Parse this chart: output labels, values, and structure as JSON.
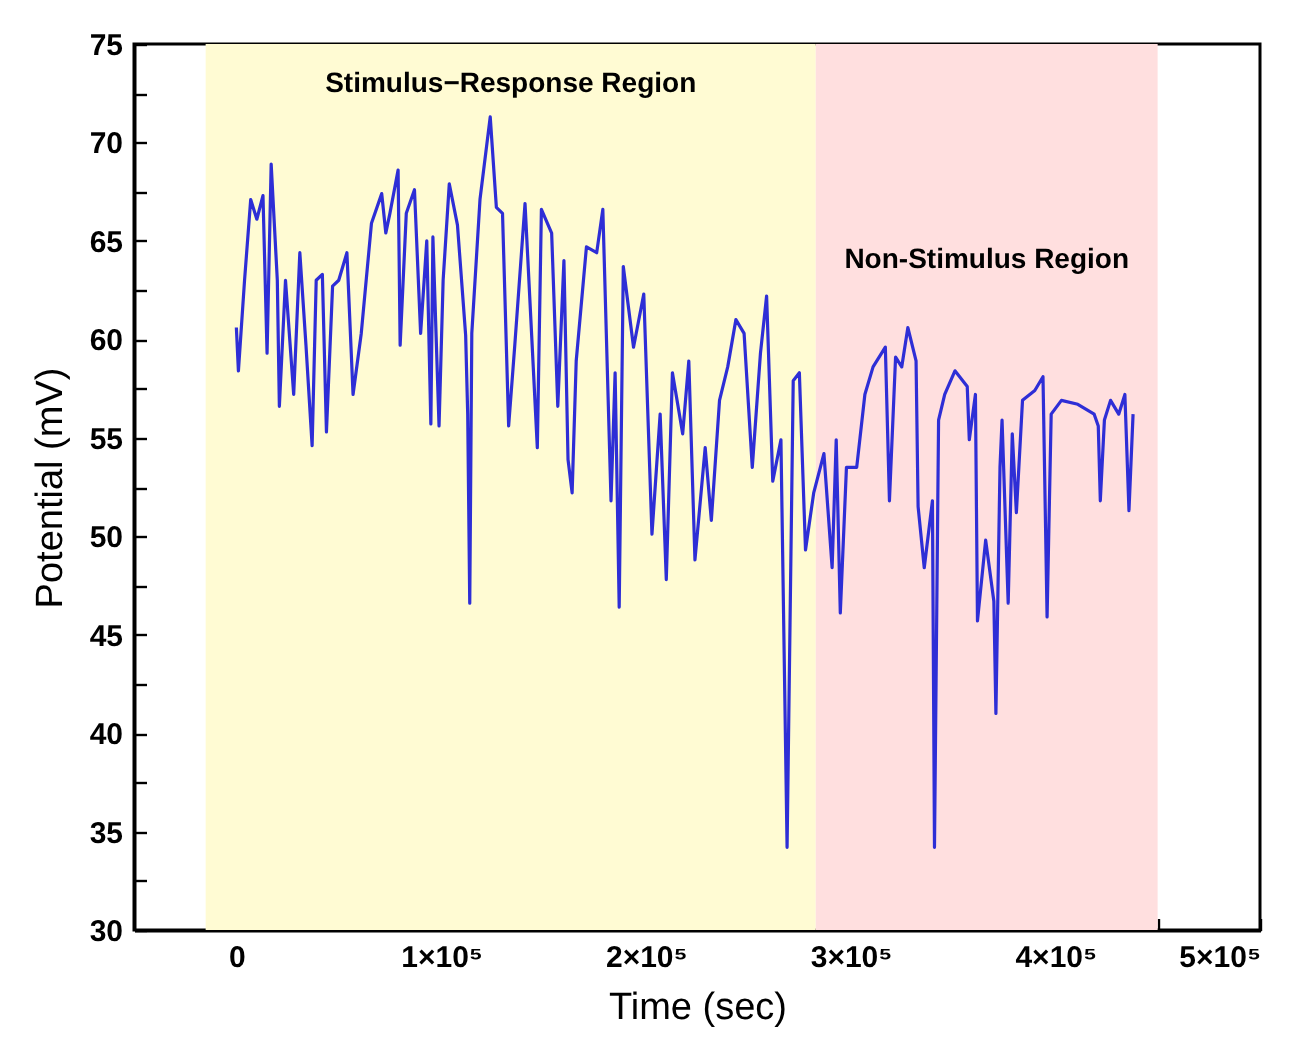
{
  "chart_data": {
    "type": "line",
    "xlabel": "Time (sec)",
    "ylabel": "Potential (mV)",
    "xlim": [
      -50000,
      500000
    ],
    "ylim": [
      30,
      75
    ],
    "xticks": [
      0,
      {
        "value": 50000,
        "label": null
      },
      {
        "value": 100000,
        "label": "1×10⁵"
      },
      {
        "value": 150000,
        "label": null
      },
      {
        "value": 200000,
        "label": "2×10⁵"
      },
      {
        "value": 250000,
        "label": null
      },
      {
        "value": 300000,
        "label": "3×10⁵"
      },
      {
        "value": 350000,
        "label": null
      },
      {
        "value": 400000,
        "label": "4×10⁵"
      },
      {
        "value": 450000,
        "label": null
      },
      {
        "value": 500000,
        "label": "5×10⁵"
      }
    ],
    "yticks": [
      30,
      {
        "value": 32.5,
        "label": null
      },
      35,
      {
        "value": 37.5,
        "label": null
      },
      40,
      {
        "value": 42.5,
        "label": null
      },
      45,
      {
        "value": 47.5,
        "label": null
      },
      50,
      {
        "value": 52.5,
        "label": null
      },
      55,
      {
        "value": 57.5,
        "label": null
      },
      60,
      {
        "value": 62.5,
        "label": null
      },
      65,
      {
        "value": 67.5,
        "label": null
      },
      70,
      {
        "value": 72.5,
        "label": null
      },
      75
    ],
    "grid": false,
    "marker": "none",
    "line_style": "solid",
    "bands": [
      {
        "axis": "x",
        "from": -15000,
        "to": 283000,
        "label": "Stimulus−Response Region",
        "color": "#fffbd3"
      },
      {
        "axis": "x",
        "from": 283000,
        "to": 450000,
        "label": "Non-Stimulus Region",
        "color": "#ffdfdf"
      }
    ],
    "x": [
      0,
      1000,
      4000,
      7000,
      10000,
      13000,
      15000,
      17000,
      20000,
      21000,
      24000,
      28000,
      31000,
      34000,
      37000,
      39000,
      42000,
      44000,
      47000,
      50000,
      54000,
      57000,
      61000,
      66000,
      71000,
      73000,
      75000,
      79000,
      80000,
      83000,
      87000,
      90000,
      93000,
      95000,
      96000,
      99000,
      101000,
      104000,
      108000,
      112000,
      113000,
      114000,
      115000,
      119000,
      124000,
      127000,
      130000,
      133000,
      136000,
      141000,
      147000,
      149000,
      154000,
      157000,
      160000,
      162000,
      164000,
      166000,
      171000,
      176000,
      179000,
      183000,
      185000,
      187000,
      189000,
      194000,
      199000,
      203000,
      207000,
      210000,
      213000,
      218000,
      221000,
      224000,
      229000,
      232000,
      236000,
      240000,
      244000,
      248000,
      252000,
      256000,
      259000,
      262000,
      266000,
      269000,
      272000,
      275000,
      278000,
      282000,
      287000,
      291000,
      293000,
      295000,
      298000,
      303000,
      307000,
      311000,
      317000,
      319000,
      322000,
      325000,
      328000,
      332000,
      333000,
      336000,
      340000,
      341000,
      343000,
      346000,
      351000,
      357000,
      358000,
      361000,
      362000,
      366000,
      370000,
      371000,
      373000,
      374000,
      377000,
      379000,
      381000,
      384000,
      390000,
      394000,
      396000,
      398000,
      403000,
      411000,
      419000,
      421000,
      422000,
      424000,
      427000,
      431000,
      434000,
      436000,
      438000
    ],
    "series": [
      {
        "color": "#2e2ed6",
        "values": [
          60.6,
          58.4,
          63.0,
          67.1,
          66.1,
          67.3,
          59.3,
          68.9,
          63.0,
          56.6,
          63.0,
          57.2,
          64.4,
          59.7,
          54.6,
          63.0,
          63.3,
          55.3,
          62.7,
          63.0,
          64.4,
          57.2,
          60.3,
          65.9,
          67.4,
          65.4,
          66.4,
          68.6,
          59.7,
          66.4,
          67.6,
          60.3,
          65.0,
          55.7,
          65.2,
          55.6,
          63.0,
          67.9,
          65.8,
          60.2,
          56.2,
          46.6,
          60.3,
          67.1,
          71.3,
          66.7,
          66.4,
          55.6,
          59.7,
          66.9,
          54.5,
          66.6,
          65.4,
          56.6,
          64.0,
          53.9,
          52.2,
          58.9,
          64.7,
          64.4,
          66.6,
          51.8,
          58.3,
          46.4,
          63.7,
          59.6,
          62.3,
          50.1,
          56.2,
          47.8,
          58.3,
          55.2,
          58.9,
          48.8,
          54.5,
          50.8,
          56.9,
          58.6,
          61.0,
          60.3,
          53.5,
          59.3,
          62.2,
          52.8,
          54.9,
          34.2,
          57.9,
          58.3,
          49.3,
          52.2,
          54.2,
          48.4,
          54.9,
          46.1,
          53.5,
          53.5,
          57.2,
          58.6,
          59.6,
          51.8,
          59.1,
          58.6,
          60.6,
          58.9,
          51.5,
          48.4,
          51.8,
          34.2,
          55.9,
          57.2,
          58.4,
          57.6,
          54.9,
          57.2,
          45.7,
          49.8,
          46.7,
          41.0,
          53.5,
          55.9,
          46.6,
          55.2,
          51.2,
          56.9,
          57.4,
          58.1,
          45.9,
          56.2,
          56.9,
          56.7,
          56.2,
          55.6,
          51.8,
          55.9,
          56.9,
          56.2,
          57.2,
          51.3,
          56.2
        ]
      }
    ]
  }
}
